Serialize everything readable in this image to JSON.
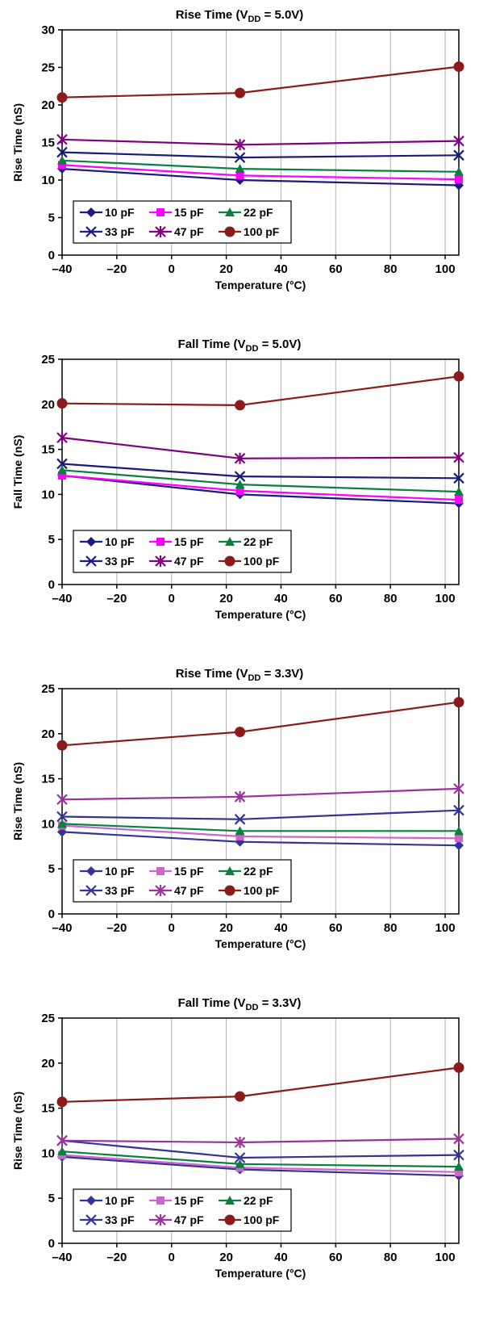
{
  "chart_data": [
    {
      "type": "line",
      "title": "Rise Time (V_DD = 5.0V)",
      "title_parts": {
        "prefix": "Rise Time (V",
        "sub": "DD",
        "suffix": " = 5.0V)"
      },
      "xlabel": "Temperature (°C)",
      "ylabel": "Rise Time (nS)",
      "xlim": [
        -40,
        105
      ],
      "ylim": [
        0,
        30
      ],
      "xticks": [
        -40,
        -20,
        0,
        20,
        40,
        60,
        80,
        100
      ],
      "xtick_labels": [
        "–40",
        "–20",
        "0",
        "20",
        "40",
        "60",
        "80",
        "100"
      ],
      "yticks": [
        0,
        5,
        10,
        15,
        20,
        25,
        30
      ],
      "grid": "vertical",
      "legend_placement": "bottom-left",
      "x": [
        -40,
        25,
        105
      ],
      "series": [
        {
          "name": "10 pF",
          "values": [
            11.5,
            10.0,
            9.3
          ],
          "color": "#1a1a80",
          "marker": "diamond"
        },
        {
          "name": "15 pF",
          "values": [
            12.0,
            10.6,
            10.1
          ],
          "color": "#ff00ff",
          "marker": "square"
        },
        {
          "name": "22 pF",
          "values": [
            12.6,
            11.5,
            11.1
          ],
          "color": "#0a8040",
          "marker": "triangle"
        },
        {
          "name": "33 pF",
          "values": [
            13.7,
            13.0,
            13.3
          ],
          "color": "#1a1a80",
          "marker": "x"
        },
        {
          "name": "47 pF",
          "values": [
            15.4,
            14.7,
            15.2
          ],
          "color": "#800080",
          "marker": "star"
        },
        {
          "name": "100 pF",
          "values": [
            21.0,
            21.6,
            25.1
          ],
          "color": "#8b1a1a",
          "marker": "circle"
        }
      ]
    },
    {
      "type": "line",
      "title": "Fall Time (V_DD = 5.0V)",
      "title_parts": {
        "prefix": "Fall Time (V",
        "sub": "DD",
        "suffix": " = 5.0V)"
      },
      "xlabel": "Temperature (°C)",
      "ylabel": "Fall Time (nS)",
      "xlim": [
        -40,
        105
      ],
      "ylim": [
        0,
        25
      ],
      "xticks": [
        -40,
        -20,
        0,
        20,
        40,
        60,
        80,
        100
      ],
      "xtick_labels": [
        "–40",
        "–20",
        "0",
        "20",
        "40",
        "60",
        "80",
        "100"
      ],
      "yticks": [
        0,
        5,
        10,
        15,
        20,
        25
      ],
      "grid": "vertical",
      "legend_placement": "bottom-left",
      "x": [
        -40,
        25,
        105
      ],
      "series": [
        {
          "name": "10 pF",
          "values": [
            12.1,
            10.0,
            9.0
          ],
          "color": "#1a1a80",
          "marker": "diamond"
        },
        {
          "name": "15 pF",
          "values": [
            12.1,
            10.4,
            9.4
          ],
          "color": "#ff00ff",
          "marker": "square"
        },
        {
          "name": "22 pF",
          "values": [
            12.7,
            11.1,
            10.3
          ],
          "color": "#0a8040",
          "marker": "triangle"
        },
        {
          "name": "33 pF",
          "values": [
            13.4,
            12.0,
            11.8
          ],
          "color": "#1a1a80",
          "marker": "x"
        },
        {
          "name": "47 pF",
          "values": [
            16.3,
            14.0,
            14.1
          ],
          "color": "#800080",
          "marker": "star"
        },
        {
          "name": "100 pF",
          "values": [
            20.1,
            19.9,
            23.1
          ],
          "color": "#8b1a1a",
          "marker": "circle"
        }
      ]
    },
    {
      "type": "line",
      "title": "Rise Time (V_DD = 3.3V)",
      "title_parts": {
        "prefix": "Rise Time (V",
        "sub": "DD",
        "suffix": " = 3.3V)"
      },
      "xlabel": "Temperature (°C)",
      "ylabel": "Rise Time (nS)",
      "xlim": [
        -40,
        105
      ],
      "ylim": [
        0,
        25
      ],
      "xticks": [
        -40,
        -20,
        0,
        20,
        40,
        60,
        80,
        100
      ],
      "xtick_labels": [
        "–40",
        "–20",
        "0",
        "20",
        "40",
        "60",
        "80",
        "100"
      ],
      "yticks": [
        0,
        5,
        10,
        15,
        20,
        25
      ],
      "grid": "vertical",
      "legend_placement": "bottom-left",
      "x": [
        -40,
        25,
        105
      ],
      "series": [
        {
          "name": "10 pF",
          "values": [
            9.1,
            8.0,
            7.6
          ],
          "color": "#333399",
          "marker": "diamond"
        },
        {
          "name": "15 pF",
          "values": [
            9.8,
            8.6,
            8.4
          ],
          "color": "#cc66cc",
          "marker": "square"
        },
        {
          "name": "22 pF",
          "values": [
            10.0,
            9.2,
            9.2
          ],
          "color": "#0a8040",
          "marker": "triangle"
        },
        {
          "name": "33 pF",
          "values": [
            10.8,
            10.5,
            11.5
          ],
          "color": "#333399",
          "marker": "x"
        },
        {
          "name": "47 pF",
          "values": [
            12.7,
            13.0,
            13.9
          ],
          "color": "#993399",
          "marker": "star"
        },
        {
          "name": "100 pF",
          "values": [
            18.7,
            20.2,
            23.5
          ],
          "color": "#8b1a1a",
          "marker": "circle"
        }
      ]
    },
    {
      "type": "line",
      "title": "Fall Time (V_DD = 3.3V)",
      "title_parts": {
        "prefix": "Fall Time (V",
        "sub": "DD",
        "suffix": " = 3.3V)"
      },
      "xlabel": "Temperature (°C)",
      "ylabel": "Rise Time (nS)",
      "xlim": [
        -40,
        105
      ],
      "ylim": [
        0,
        25
      ],
      "xticks": [
        -40,
        -20,
        0,
        20,
        40,
        60,
        80,
        100
      ],
      "xtick_labels": [
        "–40",
        "–20",
        "0",
        "20",
        "40",
        "60",
        "80",
        "100"
      ],
      "yticks": [
        0,
        5,
        10,
        15,
        20,
        25
      ],
      "grid": "vertical",
      "legend_placement": "bottom-left",
      "x": [
        -40,
        25,
        105
      ],
      "series": [
        {
          "name": "10 pF",
          "values": [
            9.6,
            8.2,
            7.5
          ],
          "color": "#333399",
          "marker": "diamond"
        },
        {
          "name": "15 pF",
          "values": [
            9.8,
            8.4,
            7.9
          ],
          "color": "#cc66cc",
          "marker": "square"
        },
        {
          "name": "22 pF",
          "values": [
            10.2,
            8.8,
            8.5
          ],
          "color": "#0a8040",
          "marker": "triangle"
        },
        {
          "name": "33 pF",
          "values": [
            11.4,
            9.5,
            9.8
          ],
          "color": "#333399",
          "marker": "x"
        },
        {
          "name": "47 pF",
          "values": [
            11.4,
            11.2,
            11.6
          ],
          "color": "#993399",
          "marker": "star"
        },
        {
          "name": "100 pF",
          "values": [
            15.7,
            16.3,
            19.5
          ],
          "color": "#8b1a1a",
          "marker": "circle"
        }
      ]
    }
  ]
}
